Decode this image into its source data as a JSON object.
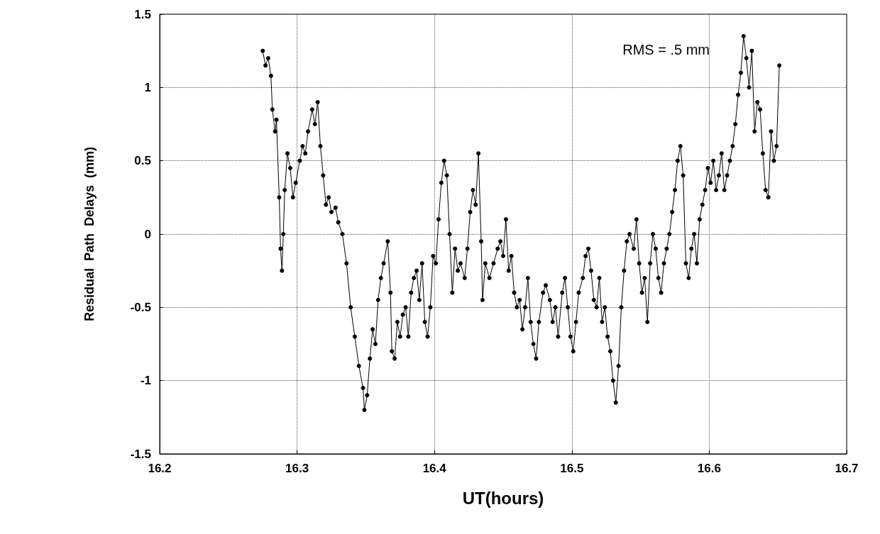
{
  "chart_data": {
    "type": "line",
    "xlabel": "UT(hours)",
    "ylabel": "Residual  Path  Delays  (mm)",
    "annotations": [
      "RMS = .5 mm"
    ],
    "x": [
      16.275,
      16.277,
      16.279,
      16.281,
      16.282,
      16.284,
      16.285,
      16.287,
      16.288,
      16.289,
      16.29,
      16.291,
      16.293,
      16.295,
      16.297,
      16.299,
      16.302,
      16.304,
      16.306,
      16.308,
      16.311,
      16.313,
      16.315,
      16.317,
      16.319,
      16.321,
      16.323,
      16.325,
      16.328,
      16.33,
      16.333,
      16.336,
      16.339,
      16.342,
      16.345,
      16.348,
      16.349,
      16.351,
      16.353,
      16.355,
      16.357,
      16.359,
      16.361,
      16.363,
      16.366,
      16.368,
      16.369,
      16.371,
      16.373,
      16.375,
      16.377,
      16.379,
      16.381,
      16.383,
      16.385,
      16.387,
      16.389,
      16.391,
      16.393,
      16.395,
      16.397,
      16.399,
      16.401,
      16.403,
      16.405,
      16.407,
      16.409,
      16.411,
      16.413,
      16.415,
      16.417,
      16.419,
      16.422,
      16.424,
      16.426,
      16.428,
      16.43,
      16.432,
      16.434,
      16.435,
      16.437,
      16.44,
      16.443,
      16.446,
      16.448,
      16.45,
      16.452,
      16.454,
      16.456,
      16.458,
      16.46,
      16.462,
      16.464,
      16.466,
      16.468,
      16.47,
      16.472,
      16.474,
      16.476,
      16.479,
      16.481,
      16.484,
      16.486,
      16.488,
      16.49,
      16.493,
      16.495,
      16.497,
      16.499,
      16.501,
      16.503,
      16.505,
      16.508,
      16.51,
      16.512,
      16.514,
      16.516,
      16.518,
      16.52,
      16.522,
      16.524,
      16.526,
      16.528,
      16.53,
      16.532,
      16.534,
      16.536,
      16.538,
      16.54,
      16.542,
      16.545,
      16.547,
      16.549,
      16.551,
      16.553,
      16.555,
      16.557,
      16.559,
      16.561,
      16.563,
      16.565,
      16.567,
      16.569,
      16.571,
      16.573,
      16.575,
      16.577,
      16.579,
      16.581,
      16.583,
      16.585,
      16.587,
      16.589,
      16.591,
      16.593,
      16.595,
      16.597,
      16.599,
      16.601,
      16.603,
      16.605,
      16.607,
      16.609,
      16.611,
      16.613,
      16.615,
      16.617,
      16.619,
      16.621,
      16.623,
      16.625,
      16.627,
      16.629,
      16.631,
      16.633,
      16.635,
      16.637,
      16.639,
      16.641,
      16.643,
      16.645,
      16.647,
      16.649,
      16.651
    ],
    "series": [
      {
        "color": "#000000",
        "values": [
          1.25,
          1.15,
          1.2,
          1.08,
          0.85,
          0.7,
          0.78,
          0.25,
          -0.1,
          -0.25,
          0.0,
          0.3,
          0.55,
          0.45,
          0.25,
          0.35,
          0.5,
          0.6,
          0.55,
          0.7,
          0.85,
          0.75,
          0.9,
          0.6,
          0.4,
          0.2,
          0.25,
          0.15,
          0.18,
          0.08,
          0.0,
          -0.2,
          -0.5,
          -0.7,
          -0.9,
          -1.05,
          -1.2,
          -1.1,
          -0.85,
          -0.65,
          -0.75,
          -0.45,
          -0.3,
          -0.2,
          -0.05,
          -0.4,
          -0.8,
          -0.85,
          -0.6,
          -0.7,
          -0.55,
          -0.5,
          -0.7,
          -0.4,
          -0.3,
          -0.25,
          -0.45,
          -0.2,
          -0.6,
          -0.7,
          -0.5,
          -0.15,
          -0.2,
          0.1,
          0.35,
          0.5,
          0.4,
          0.0,
          -0.4,
          -0.1,
          -0.25,
          -0.2,
          -0.3,
          -0.1,
          0.15,
          0.3,
          0.2,
          0.55,
          -0.05,
          -0.45,
          -0.2,
          -0.3,
          -0.2,
          -0.1,
          -0.05,
          -0.15,
          0.1,
          -0.25,
          -0.15,
          -0.4,
          -0.5,
          -0.45,
          -0.65,
          -0.5,
          -0.3,
          -0.6,
          -0.75,
          -0.85,
          -0.6,
          -0.4,
          -0.35,
          -0.45,
          -0.6,
          -0.5,
          -0.7,
          -0.4,
          -0.3,
          -0.5,
          -0.7,
          -0.8,
          -0.6,
          -0.4,
          -0.3,
          -0.15,
          -0.1,
          -0.25,
          -0.45,
          -0.5,
          -0.3,
          -0.6,
          -0.5,
          -0.7,
          -0.8,
          -1.0,
          -1.15,
          -0.9,
          -0.5,
          -0.25,
          -0.05,
          0.0,
          -0.1,
          0.1,
          -0.2,
          -0.4,
          -0.3,
          -0.6,
          -0.2,
          0.0,
          -0.1,
          -0.3,
          -0.4,
          -0.2,
          -0.1,
          0.0,
          0.15,
          0.3,
          0.5,
          0.6,
          0.4,
          -0.2,
          -0.3,
          -0.1,
          0.0,
          -0.2,
          0.1,
          0.2,
          0.3,
          0.45,
          0.35,
          0.5,
          0.3,
          0.4,
          0.55,
          0.3,
          0.4,
          0.5,
          0.6,
          0.75,
          0.95,
          1.1,
          1.35,
          1.2,
          1.0,
          1.25,
          0.7,
          0.9,
          0.85,
          0.55,
          0.3,
          0.25,
          0.7,
          0.5,
          0.6,
          1.15
        ]
      }
    ],
    "xlim": [
      16.2,
      16.7
    ],
    "xticks": [
      16.2,
      16.3,
      16.4,
      16.5,
      16.6,
      16.7
    ],
    "ylim": [
      -1.5,
      1.5
    ],
    "yticks": [
      -1.5,
      -1,
      -0.5,
      0,
      0.5,
      1,
      1.5
    ],
    "grid": true,
    "marker": "circle",
    "line_style": "solid"
  }
}
